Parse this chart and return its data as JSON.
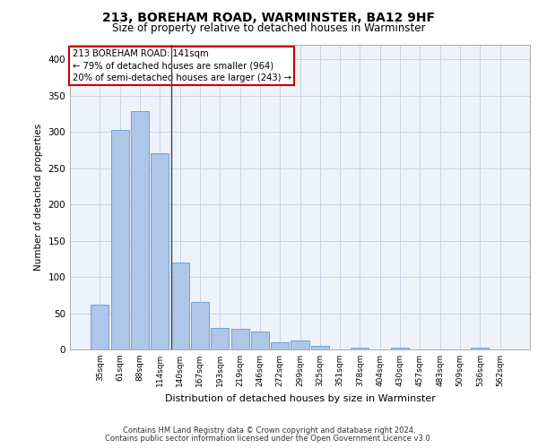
{
  "title_line1": "213, BOREHAM ROAD, WARMINSTER, BA12 9HF",
  "title_line2": "Size of property relative to detached houses in Warminster",
  "xlabel": "Distribution of detached houses by size in Warminster",
  "ylabel": "Number of detached properties",
  "bin_labels": [
    "35sqm",
    "61sqm",
    "88sqm",
    "114sqm",
    "140sqm",
    "167sqm",
    "193sqm",
    "219sqm",
    "246sqm",
    "272sqm",
    "299sqm",
    "325sqm",
    "351sqm",
    "378sqm",
    "404sqm",
    "430sqm",
    "457sqm",
    "483sqm",
    "509sqm",
    "536sqm",
    "562sqm"
  ],
  "bar_heights": [
    62,
    303,
    328,
    270,
    120,
    65,
    30,
    28,
    25,
    10,
    12,
    5,
    0,
    2,
    0,
    2,
    0,
    0,
    0,
    2,
    0
  ],
  "bar_color": "#aec6e8",
  "bar_edge_color": "#5b9bd5",
  "subject_bar_index": 4,
  "subject_label": "213 BOREHAM ROAD: 141sqm",
  "annotation_line1": "← 79% of detached houses are smaller (964)",
  "annotation_line2": "20% of semi-detached houses are larger (243) →",
  "annotation_box_color": "#ffffff",
  "annotation_border_color": "#cc0000",
  "subject_line_color": "#444444",
  "ylim": [
    0,
    420
  ],
  "yticks": [
    0,
    50,
    100,
    150,
    200,
    250,
    300,
    350,
    400
  ],
  "grid_color": "#c8d4e8",
  "background_color": "#eef2fa",
  "footer_line1": "Contains HM Land Registry data © Crown copyright and database right 2024.",
  "footer_line2": "Contains public sector information licensed under the Open Government Licence v3.0."
}
